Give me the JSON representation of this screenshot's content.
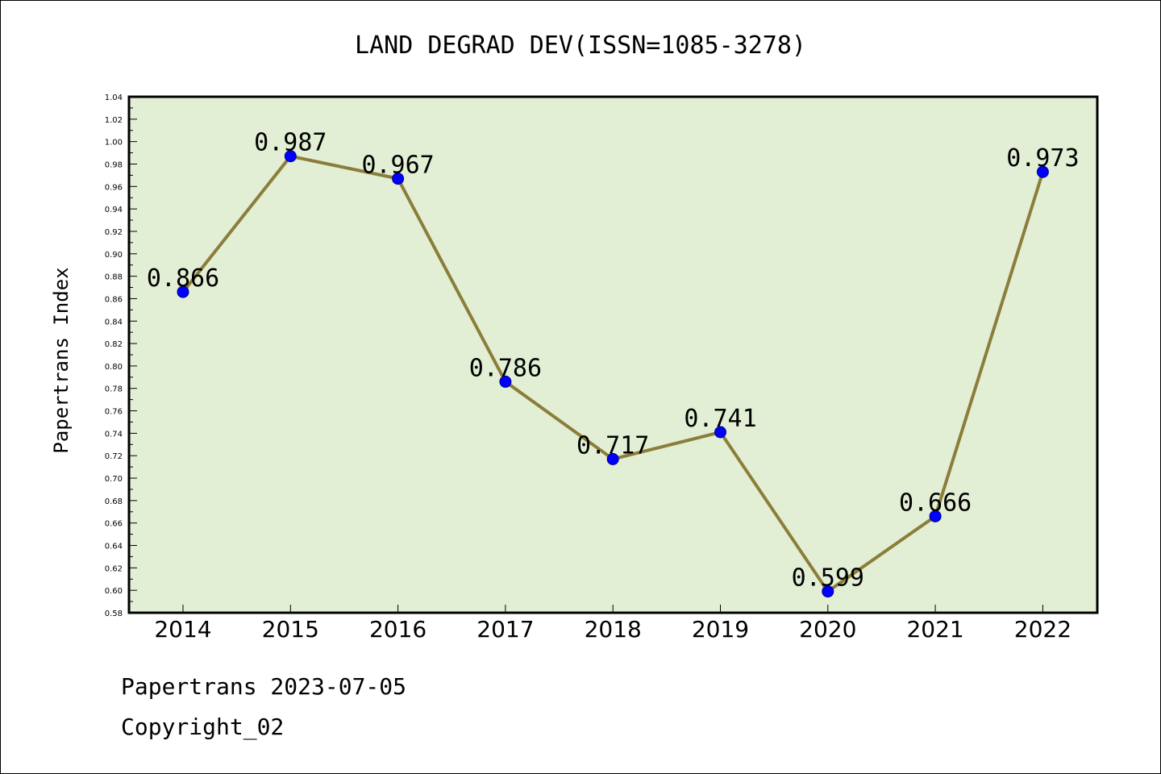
{
  "chart_data": {
    "type": "line",
    "title": "LAND DEGRAD DEV(ISSN=1085-3278)",
    "ylabel": "Papertrans Index",
    "xlabel": "",
    "x": [
      "2014",
      "2015",
      "2016",
      "2017",
      "2018",
      "2019",
      "2020",
      "2021",
      "2022"
    ],
    "series": [
      {
        "values": [
          0.866,
          0.987,
          0.967,
          0.786,
          0.717,
          0.741,
          0.599,
          0.666,
          0.973
        ],
        "labels": [
          "0.866",
          "0.987",
          "0.967",
          "0.786",
          "0.717",
          "0.741",
          "0.599",
          "0.666",
          "0.973"
        ]
      }
    ],
    "ylim": [
      0.58,
      1.04
    ],
    "yticks": [
      "0.58",
      "0.60",
      "0.62",
      "0.64",
      "0.66",
      "0.68",
      "0.70",
      "0.72",
      "0.74",
      "0.76",
      "0.78",
      "0.80",
      "0.82",
      "0.84",
      "0.86",
      "0.88",
      "0.90",
      "0.92",
      "0.94",
      "0.96",
      "0.98",
      "1.00",
      "1.02",
      "1.04"
    ],
    "grid": false,
    "colors": {
      "plot_bg": "#e2efd5",
      "line": "#8b7d3a",
      "marker": "#0000ff"
    }
  },
  "footer": {
    "line1": "Papertrans 2023-07-05",
    "line2": "Copyright_02"
  }
}
